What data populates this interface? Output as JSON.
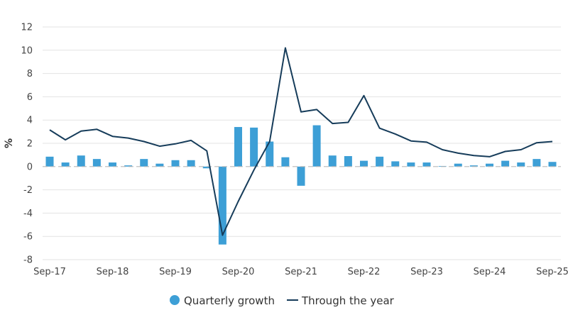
{
  "chart_data": {
    "type": "bar+line",
    "title": "",
    "xlabel": "",
    "ylabel": "%",
    "ylim": [
      -8,
      12
    ],
    "yticks": [
      -8,
      -6,
      -4,
      -2,
      0,
      2,
      4,
      6,
      8,
      10,
      12
    ],
    "ytick_labels": [
      "-8",
      "-6",
      "-4",
      "-2",
      "0",
      "2",
      "4",
      "6",
      "8",
      "10",
      "12"
    ],
    "categories": [
      "Sep-17",
      "Dec-17",
      "Mar-18",
      "Jun-18",
      "Sep-18",
      "Dec-18",
      "Mar-19",
      "Jun-19",
      "Sep-19",
      "Dec-19",
      "Mar-20",
      "Jun-20",
      "Sep-20",
      "Dec-20",
      "Mar-21",
      "Jun-21",
      "Sep-21",
      "Dec-21",
      "Mar-22",
      "Jun-22",
      "Sep-22",
      "Dec-22",
      "Mar-23",
      "Jun-23",
      "Sep-23",
      "Dec-23",
      "Mar-24",
      "Jun-24",
      "Sep-24",
      "Dec-24",
      "Mar-25",
      "Jun-25",
      "Sep-25"
    ],
    "xtick_labels": [
      "Sep-17",
      "Sep-18",
      "Sep-19",
      "Sep-20",
      "Sep-21",
      "Sep-22",
      "Sep-23",
      "Sep-24",
      "Sep-25"
    ],
    "xtick_indices": [
      0,
      4,
      8,
      12,
      16,
      20,
      24,
      28,
      32
    ],
    "series": [
      {
        "name": "Quarterly growth",
        "kind": "bar",
        "color": "#3d9fd6",
        "values": [
          0.85,
          0.35,
          0.95,
          0.65,
          0.35,
          0.1,
          0.65,
          0.25,
          0.55,
          0.55,
          -0.15,
          -6.7,
          3.4,
          3.35,
          2.15,
          0.8,
          -1.65,
          3.55,
          0.95,
          0.9,
          0.5,
          0.85,
          0.45,
          0.35,
          0.35,
          0.05,
          0.25,
          0.1,
          0.25,
          0.5,
          0.35,
          0.65,
          0.4
        ]
      },
      {
        "name": "Through the year",
        "kind": "line",
        "color": "#163c5a",
        "values": [
          3.15,
          2.3,
          3.05,
          3.2,
          2.6,
          2.45,
          2.15,
          1.75,
          1.95,
          2.25,
          1.35,
          -5.9,
          -3.0,
          -0.3,
          2.15,
          10.2,
          4.7,
          4.9,
          3.7,
          3.8,
          6.1,
          3.3,
          2.8,
          2.2,
          2.1,
          1.45,
          1.15,
          0.95,
          0.85,
          1.3,
          1.45,
          2.05,
          2.15
        ]
      }
    ],
    "legend": {
      "position": "bottom-center",
      "entries": [
        "Quarterly growth",
        "Through the year"
      ]
    },
    "grid": true
  }
}
